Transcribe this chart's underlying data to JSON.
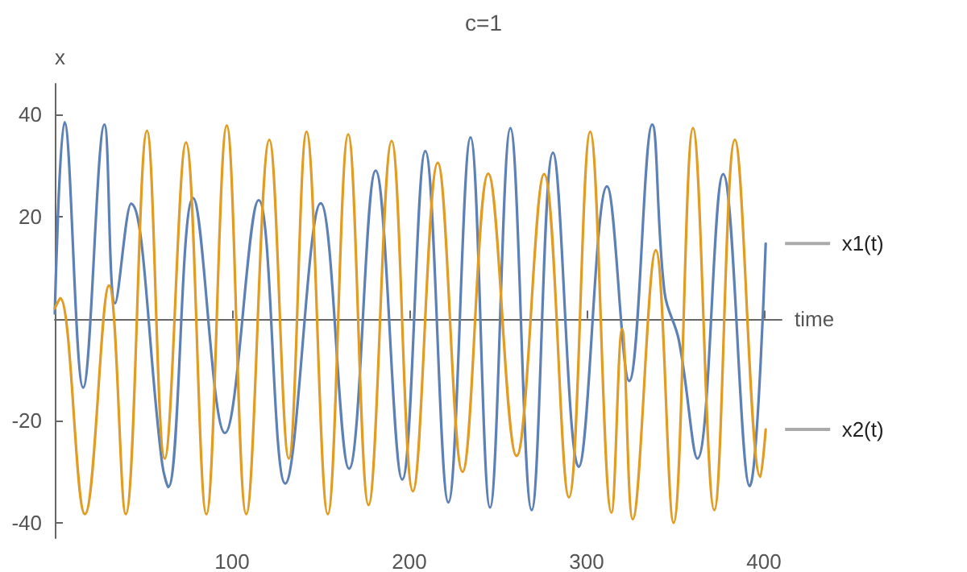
{
  "chart_data": {
    "type": "line",
    "title": "c=1",
    "xlabel": "time",
    "ylabel": "x",
    "xlim": [
      0,
      410
    ],
    "xticks": [
      100,
      200,
      300,
      400
    ],
    "ylim": [
      -43,
      46
    ],
    "yticks": [
      -40,
      -20,
      20,
      40
    ],
    "grid": false,
    "marker": "none",
    "line_style": "solid",
    "series": [
      {
        "name": "x1(t)",
        "color": "#5e81b5",
        "x": [
          0,
          5.5,
          16,
          28,
          34,
          43,
          60.6,
          64,
          78,
          96,
          115,
          130,
          150,
          166,
          181,
          196,
          209,
          222,
          234.5,
          245.5,
          257,
          269,
          281,
          295.5,
          311.5,
          324,
          337,
          344,
          352,
          362.5,
          377,
          392,
          401
        ],
        "values": [
          1,
          38.5,
          -13.5,
          38,
          3,
          22.5,
          -28.5,
          -33,
          23.6,
          -22.4,
          23.2,
          -32.3,
          22.6,
          -29.4,
          29,
          -31.5,
          32.8,
          -36,
          35.5,
          -37,
          37.3,
          -37.5,
          32.5,
          -29,
          25.9,
          -12.2,
          38,
          5,
          -4.2,
          -27.4,
          28.3,
          -32.8,
          14.7
        ]
      },
      {
        "name": "x2(t)",
        "color": "#e19c24",
        "x": [
          0,
          3,
          17,
          30.6,
          40,
          52,
          62,
          74,
          85.5,
          97,
          108,
          121,
          132,
          142,
          154,
          165.5,
          177,
          190,
          202,
          216,
          230,
          244.5,
          260.5,
          276,
          290,
          302,
          314,
          320,
          326,
          339,
          349,
          360,
          372,
          383.6,
          398,
          401
        ],
        "values": [
          2,
          4,
          -38.3,
          6.5,
          -38.3,
          36.8,
          -27.4,
          34.5,
          -38.3,
          37.8,
          -38.3,
          35,
          -27.4,
          36.6,
          -38.3,
          36.1,
          -36.5,
          34.8,
          -33.8,
          30.5,
          -30,
          28.4,
          -26.9,
          28.3,
          -35,
          36.6,
          -38,
          -2,
          -39.3,
          13.4,
          -40,
          37.3,
          -37.5,
          35,
          -31,
          -21.7
        ]
      }
    ]
  }
}
